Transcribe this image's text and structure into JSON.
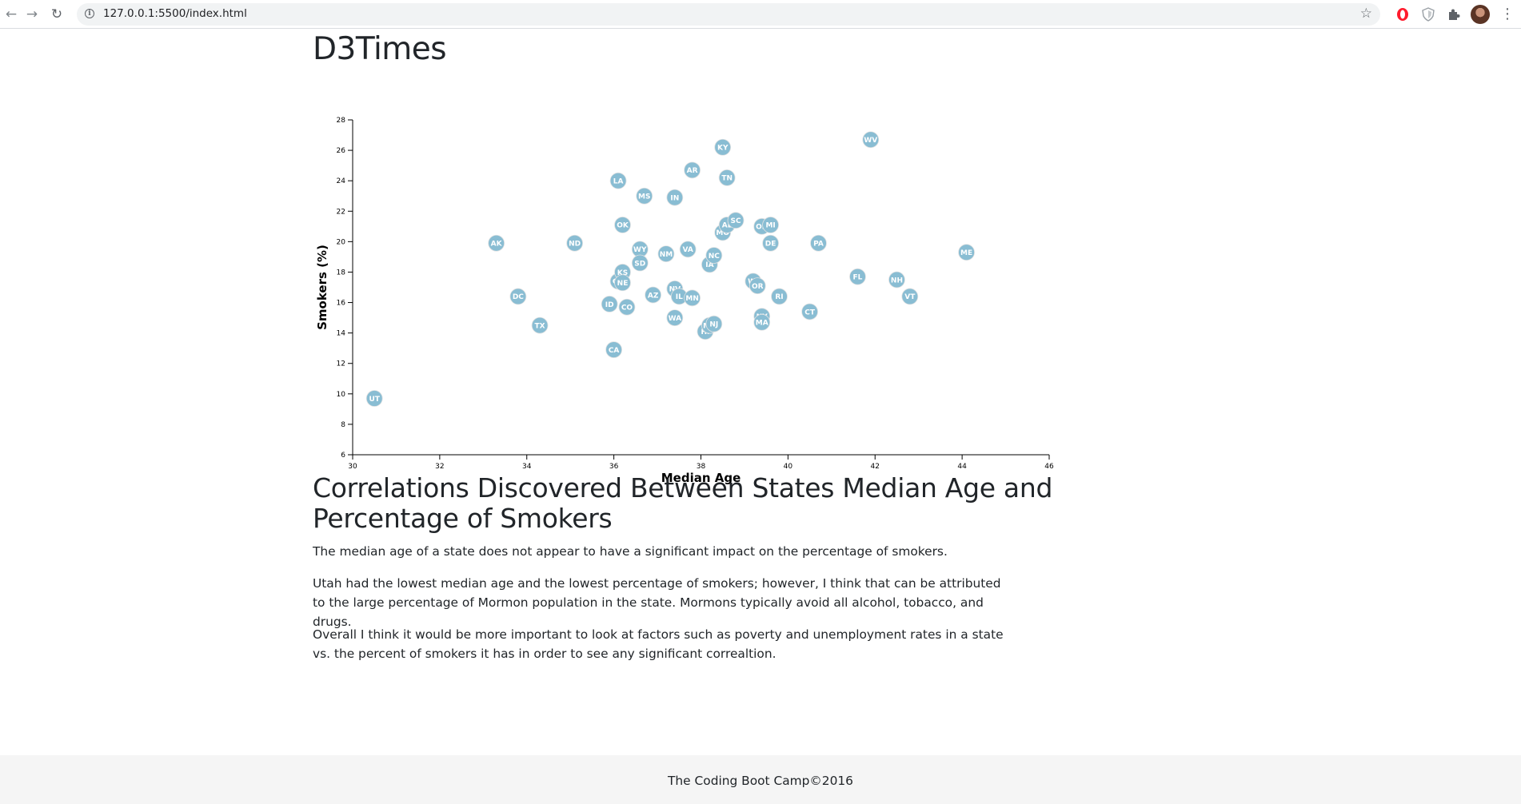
{
  "browser": {
    "url": "127.0.0.1:5500/index.html",
    "icons": {
      "back": "arrow-back-icon",
      "forward": "arrow-forward-icon",
      "reload": "reload-icon",
      "info": "info-icon",
      "bookmark": "star-icon",
      "extensions": [
        "opera-extension-icon",
        "shield-extension-icon",
        "puzzle-extensions-icon"
      ],
      "menu": "kebab-menu-icon"
    }
  },
  "page": {
    "title": "D3Times",
    "article_title": "Correlations Discovered Between States Median Age and Percentage of Smokers",
    "paragraphs": [
      "The median age of a state does not appear to have a significant impact on the percentage of smokers.",
      "Utah had the lowest median age and the lowest percentage of smokers; however, I think that can be attributed to the large percentage of Mormon population in the state. Mormons typically avoid all alcohol, tobacco, and drugs.",
      "Overall I think it would be more important to look at factors such as poverty and unemployment rates in a state vs. the percent of smokers it has in order to see any significant correaltion."
    ],
    "footer": "The Coding Boot Camp©2016"
  },
  "chart_data": {
    "type": "scatter",
    "xlabel": "Median Age",
    "ylabel": "Smokers (%)",
    "xlim": [
      30,
      46
    ],
    "ylim": [
      6,
      28
    ],
    "xticks": [
      30,
      32,
      34,
      36,
      38,
      40,
      42,
      44,
      46
    ],
    "yticks": [
      6,
      8,
      10,
      12,
      14,
      16,
      18,
      20,
      22,
      24,
      26,
      28
    ],
    "colors": {
      "point": "#89bdd3",
      "label": "#ffffff"
    },
    "points": [
      {
        "abbr": "UT",
        "x": 30.5,
        "y": 9.7
      },
      {
        "abbr": "AK",
        "x": 33.3,
        "y": 19.9
      },
      {
        "abbr": "DC",
        "x": 33.8,
        "y": 16.4
      },
      {
        "abbr": "TX",
        "x": 34.3,
        "y": 14.5
      },
      {
        "abbr": "ND",
        "x": 35.1,
        "y": 19.9
      },
      {
        "abbr": "ID",
        "x": 35.9,
        "y": 15.9
      },
      {
        "abbr": "CA",
        "x": 36.0,
        "y": 12.9
      },
      {
        "abbr": "GA",
        "x": 36.1,
        "y": 17.4
      },
      {
        "abbr": "LA",
        "x": 36.1,
        "y": 24.0
      },
      {
        "abbr": "OK",
        "x": 36.2,
        "y": 21.1
      },
      {
        "abbr": "KS",
        "x": 36.2,
        "y": 18.0
      },
      {
        "abbr": "NE",
        "x": 36.2,
        "y": 17.3
      },
      {
        "abbr": "CO",
        "x": 36.3,
        "y": 15.7
      },
      {
        "abbr": "WY",
        "x": 36.6,
        "y": 19.5
      },
      {
        "abbr": "SD",
        "x": 36.6,
        "y": 18.6
      },
      {
        "abbr": "MS",
        "x": 36.7,
        "y": 23.0
      },
      {
        "abbr": "AZ",
        "x": 36.9,
        "y": 16.5
      },
      {
        "abbr": "NM",
        "x": 37.2,
        "y": 19.2
      },
      {
        "abbr": "IN",
        "x": 37.4,
        "y": 22.9
      },
      {
        "abbr": "NV",
        "x": 37.4,
        "y": 16.9
      },
      {
        "abbr": "WA",
        "x": 37.4,
        "y": 15.0
      },
      {
        "abbr": "IL",
        "x": 37.5,
        "y": 16.4
      },
      {
        "abbr": "VA",
        "x": 37.7,
        "y": 19.5
      },
      {
        "abbr": "AR",
        "x": 37.8,
        "y": 24.7
      },
      {
        "abbr": "MN",
        "x": 37.8,
        "y": 16.3
      },
      {
        "abbr": "HI",
        "x": 38.1,
        "y": 14.1
      },
      {
        "abbr": "MD",
        "x": 38.2,
        "y": 14.5
      },
      {
        "abbr": "NJ",
        "x": 38.3,
        "y": 14.6
      },
      {
        "abbr": "IA",
        "x": 38.2,
        "y": 18.5
      },
      {
        "abbr": "NC",
        "x": 38.3,
        "y": 19.1
      },
      {
        "abbr": "KY",
        "x": 38.5,
        "y": 26.2
      },
      {
        "abbr": "MO",
        "x": 38.5,
        "y": 20.6
      },
      {
        "abbr": "TN",
        "x": 38.6,
        "y": 24.2
      },
      {
        "abbr": "AL",
        "x": 38.6,
        "y": 21.1
      },
      {
        "abbr": "SC",
        "x": 38.8,
        "y": 21.4
      },
      {
        "abbr": "WI",
        "x": 39.2,
        "y": 17.4
      },
      {
        "abbr": "OR",
        "x": 39.3,
        "y": 17.1
      },
      {
        "abbr": "OH",
        "x": 39.4,
        "y": 21.0
      },
      {
        "abbr": "NY",
        "x": 39.4,
        "y": 15.1
      },
      {
        "abbr": "MA",
        "x": 39.4,
        "y": 14.7
      },
      {
        "abbr": "MI",
        "x": 39.6,
        "y": 21.1
      },
      {
        "abbr": "DE",
        "x": 39.6,
        "y": 19.9
      },
      {
        "abbr": "RI",
        "x": 39.8,
        "y": 16.4
      },
      {
        "abbr": "CT",
        "x": 40.5,
        "y": 15.4
      },
      {
        "abbr": "PA",
        "x": 40.7,
        "y": 19.9
      },
      {
        "abbr": "FL",
        "x": 41.6,
        "y": 17.7
      },
      {
        "abbr": "WV",
        "x": 41.9,
        "y": 26.7
      },
      {
        "abbr": "NH",
        "x": 42.5,
        "y": 17.5
      },
      {
        "abbr": "VT",
        "x": 42.8,
        "y": 16.4
      },
      {
        "abbr": "ME",
        "x": 44.1,
        "y": 19.3
      }
    ]
  }
}
